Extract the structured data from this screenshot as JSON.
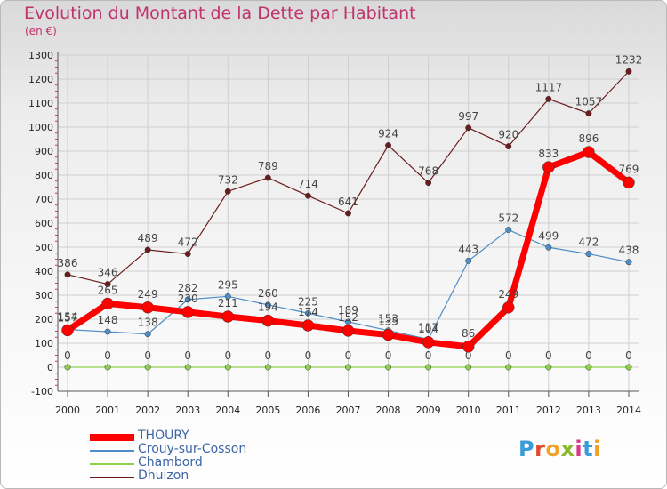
{
  "title": "Evolution du Montant de la Dette par Habitant",
  "subtitle": "(en €)",
  "logo": [
    "P",
    "r",
    "o",
    "x",
    "i",
    "t",
    "i"
  ],
  "logo_colors": [
    "#3a9bd9",
    "#e04b2c",
    "#f0a22a",
    "#8ab92d",
    "#d9378a",
    "#3a9bd9",
    "#f0a22a"
  ],
  "chart_data": {
    "type": "line",
    "categories": [
      "2000",
      "2001",
      "2002",
      "2003",
      "2004",
      "2005",
      "2006",
      "2007",
      "2008",
      "2009",
      "2010",
      "2011",
      "2012",
      "2013",
      "2014"
    ],
    "ylim": [
      -100,
      1300
    ],
    "yticks": [
      -100,
      0,
      100,
      200,
      300,
      400,
      500,
      600,
      700,
      800,
      900,
      1000,
      1100,
      1200,
      1300
    ],
    "grid": true,
    "legend_position": "bottom-left",
    "series": [
      {
        "name": "Dhuizon",
        "color": "#6b1c1c",
        "values": [
          386,
          346,
          489,
          472,
          732,
          789,
          714,
          641,
          924,
          768,
          997,
          920,
          1117,
          1057,
          1232
        ]
      },
      {
        "name": "Crouy-sur-Cosson",
        "color": "#4d8dc8",
        "values": [
          157,
          148,
          138,
          282,
          295,
          260,
          225,
          189,
          153,
          117,
          443,
          572,
          499,
          472,
          438
        ]
      },
      {
        "name": "Chambord",
        "color": "#8fd14f",
        "values": [
          0,
          0,
          0,
          0,
          0,
          0,
          0,
          0,
          0,
          0,
          0,
          0,
          0,
          0,
          0
        ]
      },
      {
        "name": "THOURY",
        "color": "#ff0000",
        "values": [
          154,
          265,
          249,
          230,
          211,
          194,
          174,
          152,
          135,
          104,
          86,
          249,
          833,
          896,
          769
        ]
      }
    ]
  }
}
